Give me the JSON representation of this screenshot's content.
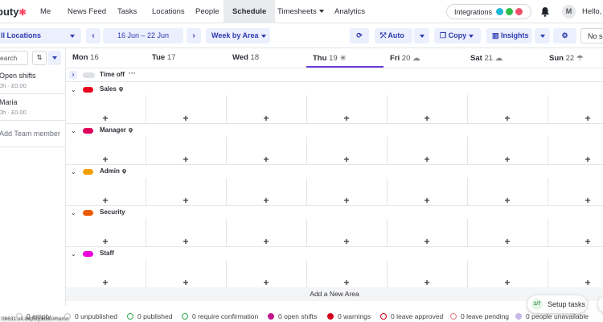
{
  "nav": {
    "logo": "puty",
    "items": [
      "Me",
      "News Feed",
      "Tasks",
      "Locations",
      "People",
      "Schedule",
      "Timesheets",
      "Analytics"
    ],
    "active": "Schedule",
    "integrations_label": "Integrations",
    "avatar_initial": "M",
    "greeting": "Hello,"
  },
  "toolbar": {
    "location": "ll Locations",
    "date_range": "16 Jun – 22 Jun",
    "view": "Week by Area",
    "auto": "Auto",
    "copy": "Copy",
    "insights": "Insights",
    "no_show": "No sh",
    "prev": "‹",
    "next": "›"
  },
  "left": {
    "search_placeholder": "earch",
    "people": [
      {
        "name": "Open shifts",
        "sub": "0h · £0.00"
      },
      {
        "name": "Maria",
        "sub": "0h · £0.00"
      }
    ],
    "add_member": "Add Team member"
  },
  "days": [
    {
      "name": "Mon",
      "num": "16",
      "weather": ""
    },
    {
      "name": "Tue",
      "num": "17",
      "weather": ""
    },
    {
      "name": "Wed",
      "num": "18",
      "weather": ""
    },
    {
      "name": "Thu",
      "num": "19",
      "weather": "☀"
    },
    {
      "name": "Fri",
      "num": "20",
      "weather": "☁"
    },
    {
      "name": "Sat",
      "num": "21",
      "weather": "☁"
    },
    {
      "name": "Sun",
      "num": "22",
      "weather": "☂"
    }
  ],
  "time_off": {
    "label": "Time off",
    "more": "···"
  },
  "areas": [
    {
      "name": "Sales",
      "color": "#e8001c",
      "pin": true
    },
    {
      "name": "Manager",
      "color": "#e0005c",
      "pin": true
    },
    {
      "name": "Admin",
      "color": "#f5a000",
      "pin": true
    },
    {
      "name": "Security",
      "color": "#ee5a00",
      "pin": false
    },
    {
      "name": "Staff",
      "color": "#ee00dd",
      "pin": false
    }
  ],
  "add_area": "Add a New Area",
  "footer": {
    "url": "06631.uk.deputy.com/#home",
    "legend": [
      {
        "text": "0 empty",
        "color": "#bfbfbf",
        "fill": false
      },
      {
        "text": "0 unpublished",
        "color": "#bfbfbf",
        "fill": false
      },
      {
        "text": "0 published",
        "color": "#2ea84a",
        "fill": false
      },
      {
        "text": "0 require confirmation",
        "color": "#2ea84a",
        "fill": false
      },
      {
        "text": "0 open shifts",
        "color": "#c0188c",
        "fill": true
      },
      {
        "text": "0 warnings",
        "color": "#d6001c",
        "fill": true
      },
      {
        "text": "0 leave approved",
        "color": "#d6001c",
        "fill": false
      },
      {
        "text": "0 leave pending",
        "color": "#e07b7b",
        "fill": false
      },
      {
        "text": "0 people unavailable",
        "color": "#c8b8e8",
        "fill": true
      }
    ],
    "setup_badge": "1/7",
    "setup_label": "Setup tasks"
  }
}
